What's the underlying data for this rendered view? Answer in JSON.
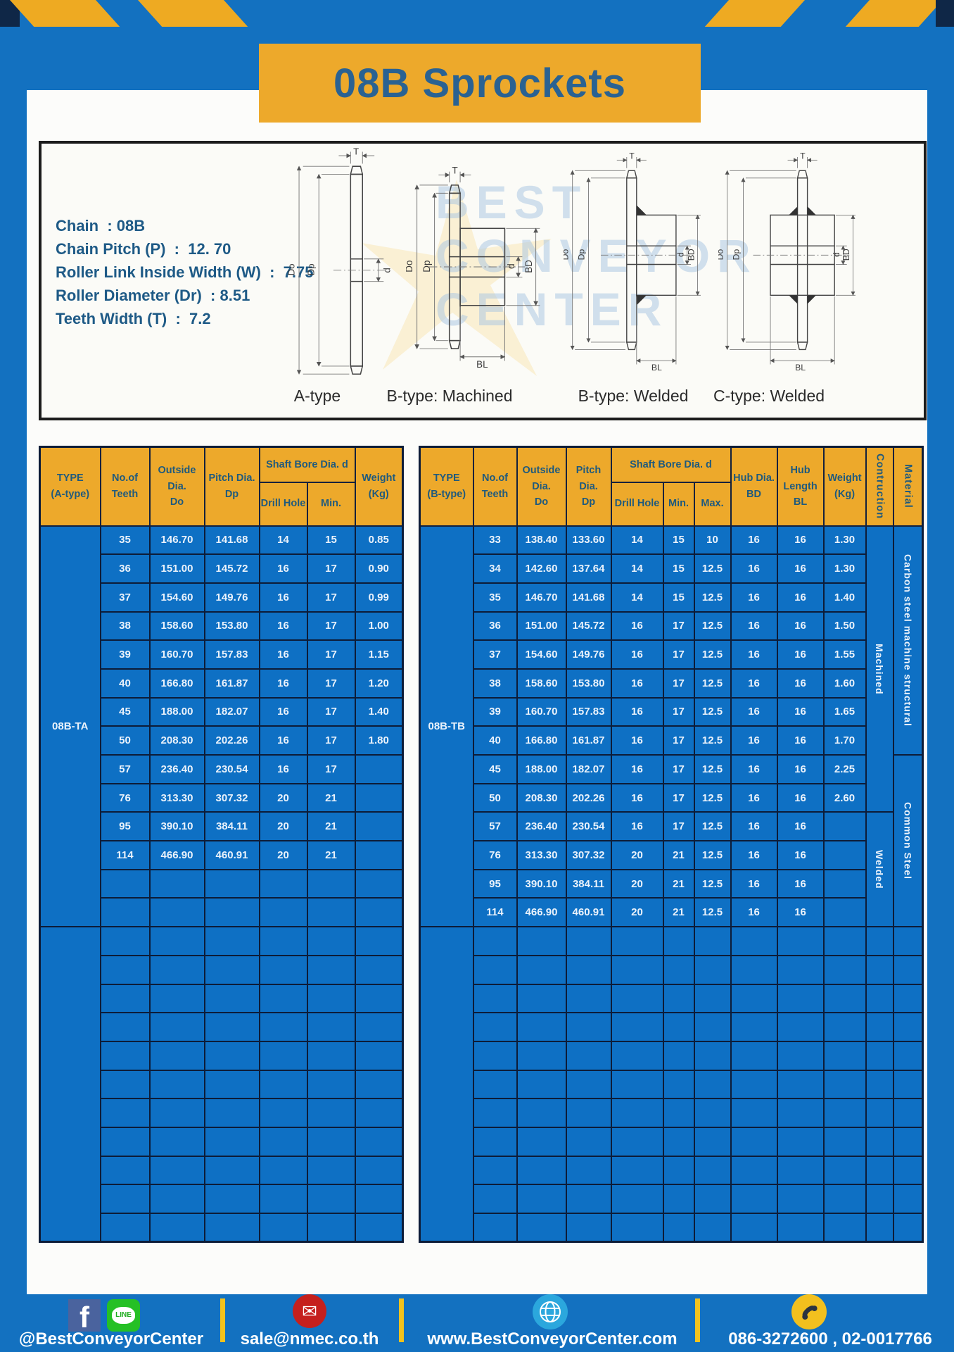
{
  "page": {
    "title": "08B Sprockets"
  },
  "colors": {
    "frame_blue": "#1371c0",
    "accent_yellow": "#eeaa22",
    "header_yellow": "#eda92b",
    "table_blue": "#0e70c4",
    "grid_navy": "#0d1c38",
    "header_text": "#1f5a7d",
    "title_text": "#2a6292",
    "footer_text": "#ffffff"
  },
  "specs": {
    "lines": [
      "Chain  : 08B",
      "Chain Pitch (P)  :  12. 70",
      "Roller Link Inside Width (W)  :  7.75",
      "Roller Diameter (Dr)  : 8.51",
      "Teeth Width (T)  :  7.2"
    ]
  },
  "watermark": {
    "lines": [
      "BEST",
      "CONVEYOR",
      "CENTER"
    ]
  },
  "diagrams": {
    "captions": [
      "A-type",
      "B-type: Machined",
      "B-type: Welded",
      "C-type: Welded"
    ],
    "labels": {
      "t": "T",
      "do": "Do",
      "dp": "Dp",
      "d": "d",
      "bd": "BD",
      "bl": "BL"
    }
  },
  "table_a": {
    "header": {
      "type": "TYPE\n(A-type)",
      "teeth": "No.of\nTeeth",
      "outside": "Outside\nDia.\nDo",
      "pitch": "Pitch Dia.\nDp",
      "shaft_bore": "Shaft Bore Dia. d",
      "drill": "Drill Hole",
      "min": "Min.",
      "weight": "Weight\n(Kg)"
    },
    "type_label": "08B-TA",
    "rows": [
      [
        "35",
        "146.70",
        "141.68",
        "14",
        "15",
        "0.85"
      ],
      [
        "36",
        "151.00",
        "145.72",
        "16",
        "17",
        "0.90"
      ],
      [
        "37",
        "154.60",
        "149.76",
        "16",
        "17",
        "0.99"
      ],
      [
        "38",
        "158.60",
        "153.80",
        "16",
        "17",
        "1.00"
      ],
      [
        "39",
        "160.70",
        "157.83",
        "16",
        "17",
        "1.15"
      ],
      [
        "40",
        "166.80",
        "161.87",
        "16",
        "17",
        "1.20"
      ],
      [
        "45",
        "188.00",
        "182.07",
        "16",
        "17",
        "1.40"
      ],
      [
        "50",
        "208.30",
        "202.26",
        "16",
        "17",
        "1.80"
      ],
      [
        "57",
        "236.40",
        "230.54",
        "16",
        "17",
        ""
      ],
      [
        "76",
        "313.30",
        "307.32",
        "20",
        "21",
        ""
      ],
      [
        "95",
        "390.10",
        "384.11",
        "20",
        "21",
        ""
      ],
      [
        "114",
        "466.90",
        "460.91",
        "20",
        "21",
        ""
      ],
      [
        "",
        "",
        "",
        "",
        "",
        ""
      ],
      [
        "",
        "",
        "",
        "",
        "",
        ""
      ]
    ],
    "empty_group_rows": 11
  },
  "table_b": {
    "header": {
      "type": "TYPE\n(B-type)",
      "teeth": "No.of\nTeeth",
      "outside": "Outside\nDia.\nDo",
      "pitch": "Pitch Dia.\nDp",
      "shaft_bore": "Shaft Bore Dia. d",
      "drill": "Drill Hole",
      "min": "Min.",
      "max": "Max.",
      "hub_dia": "Hub Dia.\nBD",
      "hub_len": "Hub\nLength\nBL",
      "weight": "Weight\n(Kg)",
      "construction": "Contruction",
      "material": "Material"
    },
    "type_label": "08B-TB",
    "rows": [
      [
        "33",
        "138.40",
        "133.60",
        "14",
        "15",
        "10",
        "16",
        "16",
        "1.30"
      ],
      [
        "34",
        "142.60",
        "137.64",
        "14",
        "15",
        "12.5",
        "16",
        "16",
        "1.30"
      ],
      [
        "35",
        "146.70",
        "141.68",
        "14",
        "15",
        "12.5",
        "16",
        "16",
        "1.40"
      ],
      [
        "36",
        "151.00",
        "145.72",
        "16",
        "17",
        "12.5",
        "16",
        "16",
        "1.50"
      ],
      [
        "37",
        "154.60",
        "149.76",
        "16",
        "17",
        "12.5",
        "16",
        "16",
        "1.55"
      ],
      [
        "38",
        "158.60",
        "153.80",
        "16",
        "17",
        "12.5",
        "16",
        "16",
        "1.60"
      ],
      [
        "39",
        "160.70",
        "157.83",
        "16",
        "17",
        "12.5",
        "16",
        "16",
        "1.65"
      ],
      [
        "40",
        "166.80",
        "161.87",
        "16",
        "17",
        "12.5",
        "16",
        "16",
        "1.70"
      ],
      [
        "45",
        "188.00",
        "182.07",
        "16",
        "17",
        "12.5",
        "16",
        "16",
        "2.25"
      ],
      [
        "50",
        "208.30",
        "202.26",
        "16",
        "17",
        "12.5",
        "16",
        "16",
        "2.60"
      ],
      [
        "57",
        "236.40",
        "230.54",
        "16",
        "17",
        "12.5",
        "16",
        "16",
        ""
      ],
      [
        "76",
        "313.30",
        "307.32",
        "20",
        "21",
        "12.5",
        "16",
        "16",
        ""
      ],
      [
        "95",
        "390.10",
        "384.11",
        "20",
        "21",
        "12.5",
        "16",
        "16",
        ""
      ],
      [
        "114",
        "466.90",
        "460.91",
        "20",
        "21",
        "12.5",
        "16",
        "16",
        ""
      ]
    ],
    "construction_groups": [
      {
        "label": "Machined",
        "span": 10
      },
      {
        "label": "Welded",
        "span": 4
      }
    ],
    "material_groups": [
      {
        "label": "Carbon steel  machine  structural",
        "span": 8
      },
      {
        "label": "Common  Steel",
        "span": 6
      }
    ],
    "empty_group_rows": 11
  },
  "footer": {
    "social_label": "@BestConveyorCenter",
    "line_badge": "LINE",
    "facebook_glyph": "f",
    "email": "sale@nmec.co.th",
    "website": "www.BestConveyorCenter.com",
    "phones": "086-3272600 , 02-0017766"
  }
}
